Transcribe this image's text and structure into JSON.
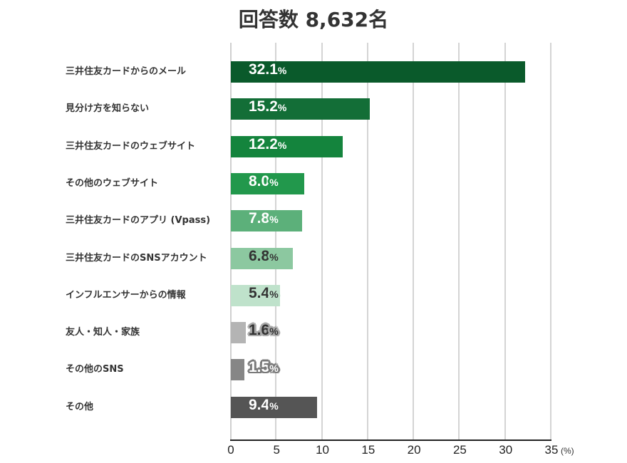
{
  "header": {
    "title": "回答数 8,632名"
  },
  "axis": {
    "ticks": [
      "0",
      "5",
      "10",
      "15",
      "20",
      "25",
      "30",
      "35"
    ],
    "unit": "(%)"
  },
  "rows": [
    {
      "label": "三井住友カードからのメール",
      "value": "32.1",
      "pct": "%",
      "color": "#0a5a2b",
      "text": "#ffffff",
      "halo": "#0a5a2b"
    },
    {
      "label": "見分け方を知らない",
      "value": "15.2",
      "pct": "%",
      "color": "#136e37",
      "text": "#ffffff",
      "halo": "#136e37"
    },
    {
      "label": "三井住友カードのウェブサイト",
      "value": "12.2",
      "pct": "%",
      "color": "#14843d",
      "text": "#ffffff",
      "halo": "#14843d"
    },
    {
      "label": "その他のウェブサイト",
      "value": "8.0",
      "pct": "%",
      "color": "#22984c",
      "text": "#ffffff",
      "halo": "#22984c"
    },
    {
      "label": "三井住友カードのアプリ (Vpass)",
      "value": "7.8",
      "pct": "%",
      "color": "#5cb07a",
      "text": "#ffffff",
      "halo": "#5cb07a"
    },
    {
      "label": "三井住友カードのSNSアカウント",
      "value": "6.8",
      "pct": "%",
      "color": "#8cc8a0",
      "text": "#333333",
      "halo": "#8cc8a0"
    },
    {
      "label": "インフルエンサーからの情報",
      "value": "5.4",
      "pct": "%",
      "color": "#bfe2cb",
      "text": "#333333",
      "halo": "#bfe2cb"
    },
    {
      "label": "友人・知人・家族",
      "value": "1.6",
      "pct": "%",
      "color": "#b4b4b4",
      "text": "#333333",
      "halo": "#a8a8a8"
    },
    {
      "label": "その他のSNS",
      "value": "1.5",
      "pct": "%",
      "color": "#868686",
      "text": "#ffffff",
      "halo": "#7a7a7a"
    },
    {
      "label": "その他",
      "value": "9.4",
      "pct": "%",
      "color": "#555555",
      "text": "#ffffff",
      "halo": "#555555"
    }
  ],
  "chart_data": {
    "type": "bar",
    "orientation": "horizontal",
    "title": "回答数 8,632名",
    "categories": [
      "三井住友カードからのメール",
      "見分け方を知らない",
      "三井住友カードのウェブサイト",
      "その他のウェブサイト",
      "三井住友カードのアプリ (Vpass)",
      "三井住友カードのSNSアカウント",
      "インフルエンサーからの情報",
      "友人・知人・家族",
      "その他のSNS",
      "その他"
    ],
    "values": [
      32.1,
      15.2,
      12.2,
      8.0,
      7.8,
      6.8,
      5.4,
      1.6,
      1.5,
      9.4
    ],
    "xlabel": "(%)",
    "ylabel": "",
    "xlim": [
      0,
      35
    ],
    "xticks": [
      0,
      5,
      10,
      15,
      20,
      25,
      30,
      35
    ],
    "grid": true,
    "legend": null
  }
}
